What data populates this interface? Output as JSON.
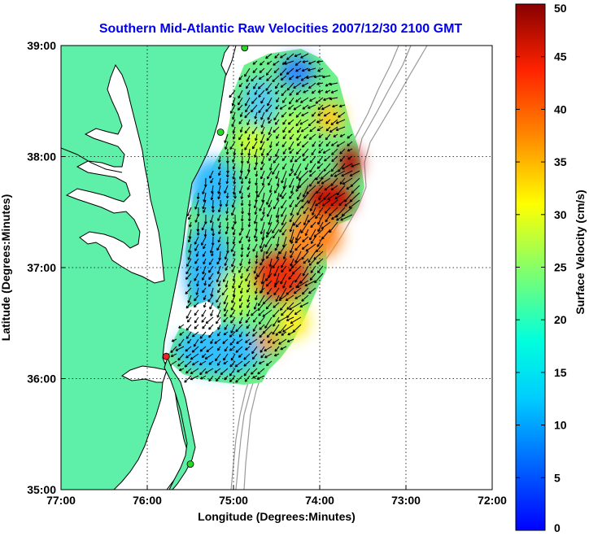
{
  "title": "Southern Mid-Atlantic Raw Velocities 2007/12/30 2100 GMT",
  "title_color": "#0000ee",
  "xlabel": "Longitude (Degrees:Minutes)",
  "ylabel": "Latitude (Degrees:Minutes)",
  "colorbar_label": "Surface Velocity (cm/s)",
  "x_ticks": [
    "77:00",
    "76:00",
    "75:00",
    "74:00",
    "73:00",
    "72:00"
  ],
  "y_ticks": [
    "39:00",
    "38:00",
    "37:00",
    "36:00",
    "35:00"
  ],
  "colorbar_ticks": [
    "50",
    "45",
    "40",
    "35",
    "30",
    "25",
    "20",
    "15",
    "10",
    "5",
    "0"
  ],
  "colors": {
    "land": "#5ef0a8",
    "ocean": "#ffffff",
    "coastline": "#000000",
    "bathymetry": "#999999",
    "grid": "#000000",
    "station_green": "#22dd22",
    "station_red": "#ee2222"
  },
  "chart_data": {
    "type": "heatmap",
    "xlim": [
      -77,
      -72
    ],
    "ylim": [
      35,
      39
    ],
    "clim": [
      0,
      50
    ],
    "colormap": "jet",
    "grid": true,
    "legend": "colorbar-right",
    "stations": [
      {
        "lon": -74.87,
        "lat": 38.98,
        "color": "green"
      },
      {
        "lon": -75.15,
        "lat": 38.22,
        "color": "green"
      },
      {
        "lon": -75.78,
        "lat": 36.2,
        "color": "red"
      },
      {
        "lon": -75.5,
        "lat": 35.23,
        "color": "green"
      }
    ]
  }
}
